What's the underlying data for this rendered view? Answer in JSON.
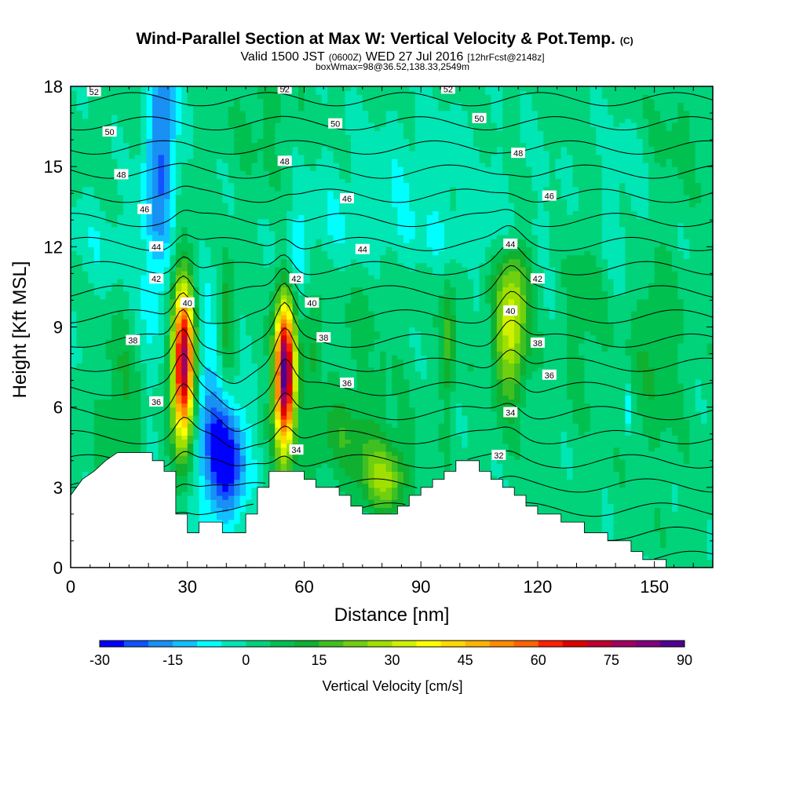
{
  "title": {
    "main": "Wind-Parallel Section at Max W: Vertical Velocity & Pot.Temp.",
    "main_mark": "(C)",
    "valid_prefix": "Valid 1500 JST",
    "valid_utc": "(0600Z)",
    "valid_date": "WED 27 Jul 2016",
    "forecast": "[12hrFcst@2148z]",
    "box_info": "boxWmax=98@36.52,138.33,2549m"
  },
  "chart_data": {
    "type": "heatmap",
    "xlabel": "Distance [nm]",
    "ylabel": "Height [Kft MSL]",
    "xlim": [
      0,
      165
    ],
    "ylim": [
      0,
      18
    ],
    "xticks": [
      0,
      30,
      60,
      90,
      120,
      150
    ],
    "yticks": [
      0,
      3,
      6,
      9,
      12,
      15,
      18
    ],
    "colorbar": {
      "title": "Vertical Velocity [cm/s]",
      "ticks": [
        -30,
        -15,
        0,
        15,
        30,
        45,
        60,
        75,
        90
      ],
      "bin_width": 5,
      "colors": [
        "#0000ff",
        "#1052ff",
        "#1890f4",
        "#10c0ff",
        "#00ffff",
        "#00e6b4",
        "#00d37a",
        "#00c050",
        "#10b030",
        "#40c020",
        "#70d010",
        "#a0e000",
        "#d0f000",
        "#ffff00",
        "#ffd800",
        "#ffb400",
        "#ff8c00",
        "#ff6400",
        "#ff2000",
        "#e00000",
        "#c00030",
        "#a00060",
        "#800080",
        "#500090"
      ]
    },
    "background_w": 2,
    "w_features": [
      {
        "x": 29,
        "y": 7.6,
        "sx": 2.0,
        "sy": 2.1,
        "w": 80
      },
      {
        "x": 55,
        "y": 7.2,
        "sx": 1.8,
        "sy": 1.9,
        "w": 88
      },
      {
        "x": 113,
        "y": 8.8,
        "sx": 3.0,
        "sy": 1.8,
        "w": 30
      },
      {
        "x": 40,
        "y": 4.0,
        "sx": 4.0,
        "sy": 1.6,
        "w": -30
      },
      {
        "x": 35,
        "y": 6.5,
        "sx": 3.5,
        "sy": 3.0,
        "w": -12
      },
      {
        "x": 24,
        "y": 16.5,
        "sx": 2.5,
        "sy": 3.0,
        "w": -20
      },
      {
        "x": 21,
        "y": 12.0,
        "sx": 2.5,
        "sy": 4.0,
        "w": -10
      },
      {
        "x": 58,
        "y": 11.8,
        "sx": 2.0,
        "sy": 1.0,
        "w": -10
      },
      {
        "x": 90,
        "y": 15.0,
        "sx": 15,
        "sy": 1.8,
        "w": -5
      },
      {
        "x": 100,
        "y": 12.3,
        "sx": 18,
        "sy": 0.8,
        "w": -5
      },
      {
        "x": 8,
        "y": 12.0,
        "sx": 8,
        "sy": 1.5,
        "w": -5
      },
      {
        "x": 70,
        "y": 13.0,
        "sx": 10,
        "sy": 1.5,
        "w": -5
      },
      {
        "x": 140,
        "y": 13.5,
        "sx": 12,
        "sy": 2.5,
        "w": -5
      },
      {
        "x": 81,
        "y": 3.4,
        "sx": 4.0,
        "sy": 0.9,
        "w": 22
      },
      {
        "x": 68,
        "y": 4.8,
        "sx": 8.0,
        "sy": 1.0,
        "w": 8
      },
      {
        "x": 40,
        "y": 9.2,
        "sx": 1.5,
        "sy": 1.5,
        "w": 15
      },
      {
        "x": 62,
        "y": 8.5,
        "sx": 1.5,
        "sy": 1.5,
        "w": 10
      },
      {
        "x": 97,
        "y": 8.5,
        "sx": 1.3,
        "sy": 1.8,
        "w": 15
      },
      {
        "x": 13,
        "y": 6.0,
        "sx": 4.0,
        "sy": 2.5,
        "w": 8
      },
      {
        "x": 132,
        "y": 11.0,
        "sx": 4.0,
        "sy": 3.0,
        "w": 8
      },
      {
        "x": 150,
        "y": 8.5,
        "sx": 5.0,
        "sy": 3.0,
        "w": 8
      },
      {
        "x": 115,
        "y": 11.2,
        "sx": 3.0,
        "sy": 1.0,
        "w": 10
      },
      {
        "x": 75,
        "y": 7.0,
        "sx": 6.0,
        "sy": 4.0,
        "w": 5
      },
      {
        "x": 155,
        "y": 16.0,
        "sx": 6.0,
        "sy": 2.0,
        "w": 5
      },
      {
        "x": 50,
        "y": 17.0,
        "sx": 5.0,
        "sy": 2.0,
        "w": 5
      },
      {
        "x": 155,
        "y": 2.0,
        "sx": 10,
        "sy": 1.0,
        "w": 0
      },
      {
        "x": 143,
        "y": 6.0,
        "sx": 0.6,
        "sy": 0.6,
        "w": -10
      },
      {
        "x": 78,
        "y": 7.8,
        "sx": 0.6,
        "sy": 0.4,
        "w": -10
      }
    ],
    "terrain_kft": [
      [
        0,
        2.7
      ],
      [
        3,
        3.3
      ],
      [
        6,
        3.6
      ],
      [
        9,
        4.0
      ],
      [
        12,
        4.3
      ],
      [
        21,
        4.3
      ],
      [
        21,
        4.0
      ],
      [
        24,
        4.0
      ],
      [
        24,
        3.6
      ],
      [
        27,
        3.6
      ],
      [
        27,
        2.0
      ],
      [
        30,
        2.0
      ],
      [
        30,
        1.3
      ],
      [
        33,
        1.3
      ],
      [
        33,
        1.7
      ],
      [
        39,
        1.7
      ],
      [
        39,
        1.3
      ],
      [
        45,
        1.3
      ],
      [
        45,
        2.0
      ],
      [
        48,
        2.0
      ],
      [
        48,
        3.0
      ],
      [
        51,
        3.0
      ],
      [
        51,
        3.6
      ],
      [
        60,
        3.6
      ],
      [
        60,
        3.3
      ],
      [
        63,
        3.3
      ],
      [
        63,
        3.0
      ],
      [
        69,
        3.0
      ],
      [
        69,
        2.7
      ],
      [
        72,
        2.7
      ],
      [
        72,
        2.3
      ],
      [
        75,
        2.3
      ],
      [
        75,
        2.0
      ],
      [
        84,
        2.0
      ],
      [
        84,
        2.3
      ],
      [
        87,
        2.3
      ],
      [
        87,
        2.7
      ],
      [
        90,
        2.7
      ],
      [
        90,
        3.0
      ],
      [
        93,
        3.0
      ],
      [
        93,
        3.3
      ],
      [
        96,
        3.3
      ],
      [
        96,
        3.6
      ],
      [
        99,
        3.6
      ],
      [
        99,
        4.0
      ],
      [
        105,
        4.0
      ],
      [
        105,
        3.6
      ],
      [
        108,
        3.6
      ],
      [
        108,
        3.3
      ],
      [
        111,
        3.3
      ],
      [
        111,
        3.0
      ],
      [
        114,
        3.0
      ],
      [
        114,
        2.7
      ],
      [
        117,
        2.7
      ],
      [
        117,
        2.3
      ],
      [
        120,
        2.3
      ],
      [
        120,
        2.0
      ],
      [
        126,
        2.0
      ],
      [
        126,
        1.7
      ],
      [
        132,
        1.7
      ],
      [
        132,
        1.3
      ],
      [
        138,
        1.3
      ],
      [
        138,
        1.0
      ],
      [
        144,
        1.0
      ],
      [
        144,
        0.6
      ],
      [
        147,
        0.6
      ],
      [
        147,
        0.3
      ],
      [
        153,
        0.3
      ],
      [
        153,
        0.0
      ],
      [
        165,
        0.0
      ]
    ],
    "theta_levels": [
      31,
      32,
      33,
      34,
      35,
      36,
      37,
      38,
      39,
      40,
      41,
      42,
      43,
      44,
      45,
      46,
      47,
      48,
      49,
      50,
      51,
      52
    ],
    "contour_labels": [
      {
        "text": "52",
        "x": 6,
        "y": 17.8
      },
      {
        "text": "52",
        "x": 55,
        "y": 17.9
      },
      {
        "text": "52",
        "x": 97,
        "y": 17.9
      },
      {
        "text": "50",
        "x": 10,
        "y": 16.3
      },
      {
        "text": "50",
        "x": 68,
        "y": 16.6
      },
      {
        "text": "50",
        "x": 105,
        "y": 16.8
      },
      {
        "text": "48",
        "x": 13,
        "y": 14.7
      },
      {
        "text": "48",
        "x": 55,
        "y": 15.2
      },
      {
        "text": "48",
        "x": 115,
        "y": 15.5
      },
      {
        "text": "46",
        "x": 19,
        "y": 13.4
      },
      {
        "text": "46",
        "x": 71,
        "y": 13.8
      },
      {
        "text": "46",
        "x": 123,
        "y": 13.9
      },
      {
        "text": "44",
        "x": 22,
        "y": 12.0
      },
      {
        "text": "44",
        "x": 75,
        "y": 11.9
      },
      {
        "text": "44",
        "x": 113,
        "y": 12.1
      },
      {
        "text": "42",
        "x": 22,
        "y": 10.8
      },
      {
        "text": "42",
        "x": 58,
        "y": 10.8
      },
      {
        "text": "42",
        "x": 120,
        "y": 10.8
      },
      {
        "text": "40",
        "x": 30,
        "y": 9.9
      },
      {
        "text": "40",
        "x": 62,
        "y": 9.9
      },
      {
        "text": "40",
        "x": 113,
        "y": 9.6
      },
      {
        "text": "38",
        "x": 16,
        "y": 8.5
      },
      {
        "text": "38",
        "x": 65,
        "y": 8.6
      },
      {
        "text": "38",
        "x": 120,
        "y": 8.4
      },
      {
        "text": "36",
        "x": 22,
        "y": 6.2
      },
      {
        "text": "36",
        "x": 71,
        "y": 6.9
      },
      {
        "text": "36",
        "x": 123,
        "y": 7.2
      },
      {
        "text": "34",
        "x": 58,
        "y": 4.4
      },
      {
        "text": "34",
        "x": 113,
        "y": 5.8
      },
      {
        "text": "32",
        "x": 110,
        "y": 4.2
      }
    ]
  }
}
